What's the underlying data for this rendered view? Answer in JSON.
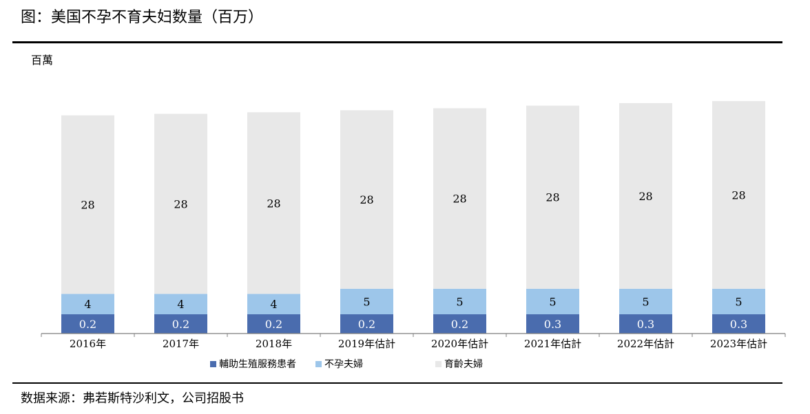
{
  "figure_title": "图：美国不孕不育夫妇数量（百万）",
  "unit_label": "百萬",
  "source": "数据来源：弗若斯特沙利文，公司招股书",
  "colors": {
    "art": "#4a6cae",
    "infertile": "#9dc6ea",
    "childbearing": "#e8e8e8",
    "axis": "#7f7f7f"
  },
  "chart_data": {
    "type": "bar",
    "stacked": true,
    "categories": [
      "2016年",
      "2017年",
      "2018年",
      "2019年估計",
      "2020年估計",
      "2021年估計",
      "2022年估計",
      "2023年估計"
    ],
    "series": [
      {
        "name": "輔助生殖服務患者",
        "values": [
          0.2,
          0.2,
          0.2,
          0.2,
          0.2,
          0.3,
          0.3,
          0.3
        ]
      },
      {
        "name": "不孕夫婦",
        "values": [
          4,
          4,
          4,
          5,
          5,
          5,
          5,
          5
        ]
      },
      {
        "name": "育齡夫婦",
        "values": [
          28,
          28,
          28,
          28,
          28,
          28,
          28,
          28
        ]
      }
    ],
    "bar_totals_estimated": [
      42.7,
      43.0,
      43.3,
      43.7,
      44.1,
      44.6,
      45.1,
      45.5
    ],
    "grid": false,
    "legend_position": "bottom"
  }
}
